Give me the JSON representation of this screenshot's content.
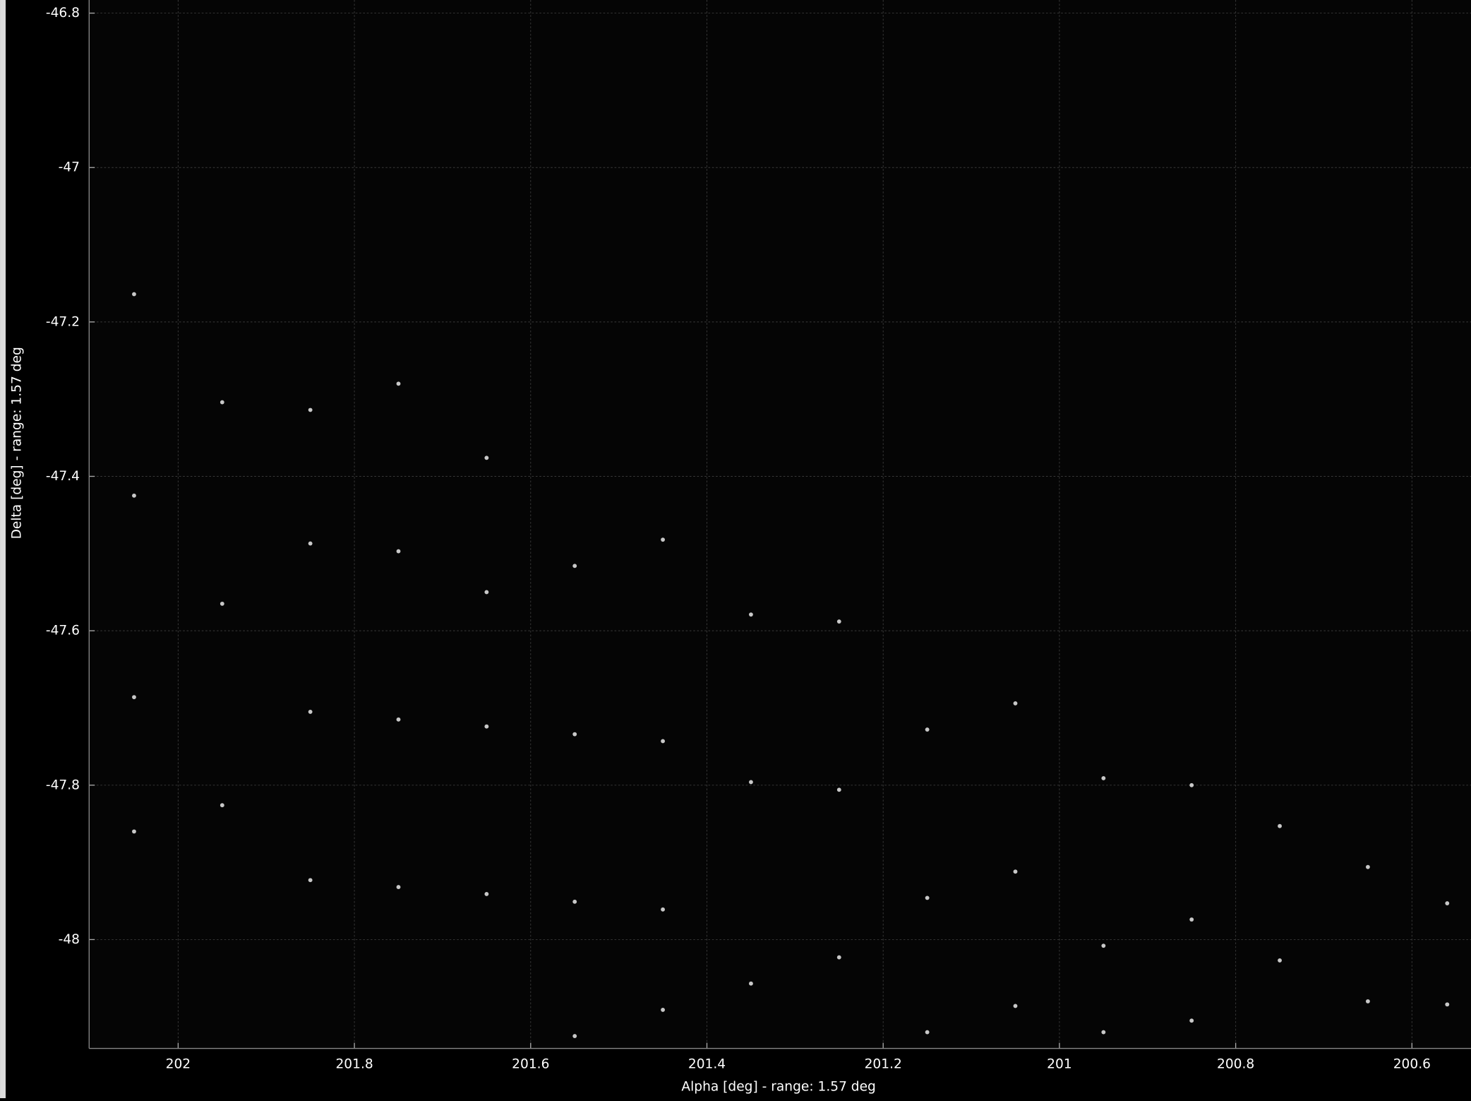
{
  "chart_data": {
    "type": "scatter",
    "xlabel": "Alpha [deg] - range: 1.57 deg",
    "ylabel": "Delta [deg] - range: 1.57 deg",
    "xlim": [
      202.101,
      200.533
    ],
    "ylim": [
      -48.141,
      -46.783
    ],
    "xticks": [
      202,
      201.8,
      201.6,
      201.4,
      201.2,
      201,
      200.8,
      200.6
    ],
    "yticks": [
      -46.8,
      -47,
      -47.2,
      -47.4,
      -47.6,
      -47.8,
      -48
    ],
    "grid": true,
    "color": "#c8c8c8",
    "x": [
      202.05,
      202.05,
      202.05,
      202.05,
      201.95,
      201.95,
      201.95,
      201.85,
      201.85,
      201.85,
      201.85,
      201.75,
      201.75,
      201.75,
      201.75,
      201.65,
      201.65,
      201.65,
      201.65,
      201.55,
      201.55,
      201.55,
      201.55,
      201.45,
      201.45,
      201.45,
      201.45,
      201.35,
      201.35,
      201.35,
      201.25,
      201.25,
      201.25,
      201.15,
      201.15,
      201.15,
      201.05,
      201.05,
      201.05,
      200.95,
      200.95,
      200.95,
      200.85,
      200.85,
      200.85,
      200.75,
      200.75,
      200.65,
      200.65,
      200.56,
      200.56
    ],
    "y": [
      -47.164,
      -47.425,
      -47.686,
      -47.86,
      -47.304,
      -47.565,
      -47.826,
      -47.314,
      -47.487,
      -47.705,
      -47.923,
      -47.28,
      -47.497,
      -47.715,
      -47.932,
      -47.376,
      -47.55,
      -47.724,
      -47.941,
      -47.516,
      -47.734,
      -47.951,
      -48.125,
      -47.482,
      -47.743,
      -47.961,
      -48.091,
      -47.579,
      -47.796,
      -48.057,
      -47.588,
      -47.806,
      -48.023,
      -47.728,
      -47.946,
      -48.12,
      -47.694,
      -47.912,
      -48.086,
      -47.791,
      -48.008,
      -48.12,
      -47.8,
      -47.974,
      -48.105,
      -47.853,
      -48.027,
      -47.906,
      -48.08,
      -47.953,
      -48.084
    ]
  }
}
